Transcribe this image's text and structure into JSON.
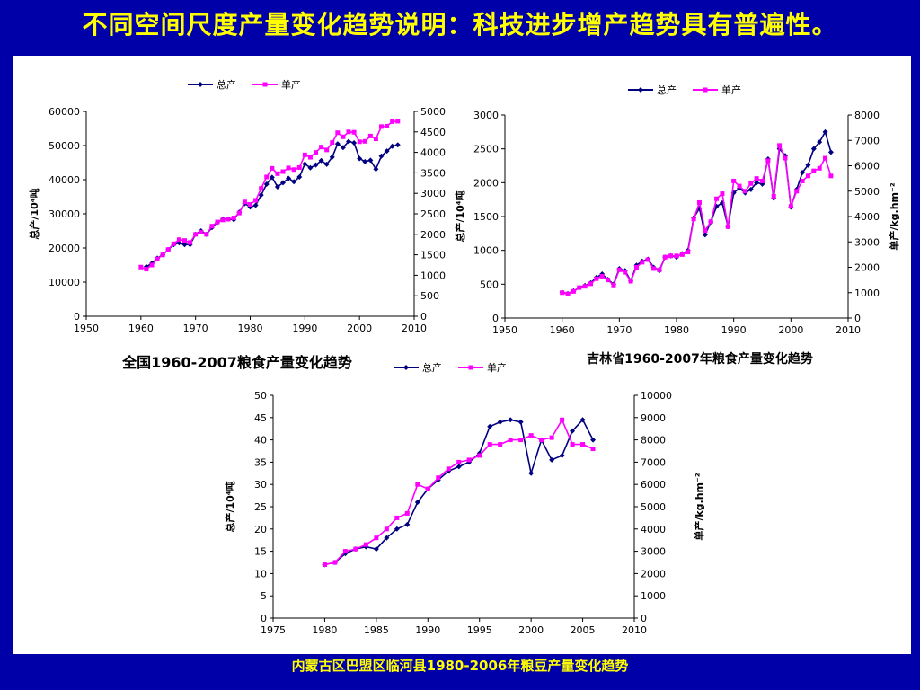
{
  "slide": {
    "title": "不同空间尺度产量变化趋势说明：科技进步增产趋势具有普遍性。",
    "footer": "内蒙古区巴盟区临河县1980-2006年粮豆产量变化趋势"
  },
  "colors": {
    "total": "#000080",
    "unit": "#ff00ff",
    "background": "#0000a8",
    "title": "#ffff00"
  },
  "chart_data": [
    {
      "type": "line",
      "caption": "全国1960-2007粮食产量变化趋势",
      "legend": [
        "总产",
        "单产"
      ],
      "legend_position": "top-center",
      "ylabel": "总产/10⁴吨",
      "y2label": "",
      "xlim": [
        1950,
        2010
      ],
      "xticks": [
        1950,
        1960,
        1970,
        1980,
        1990,
        2000,
        2010
      ],
      "ylim": [
        0,
        60000
      ],
      "yticks": [
        0,
        10000,
        20000,
        30000,
        40000,
        50000,
        60000
      ],
      "y2lim": [
        0,
        5000
      ],
      "y2ticks": [
        0,
        500,
        1000,
        1500,
        2000,
        2500,
        3000,
        3500,
        4000,
        4500,
        5000
      ],
      "series": [
        {
          "name": "总产",
          "axis": "left",
          "x": [
            1961,
            1962,
            1963,
            1964,
            1965,
            1966,
            1967,
            1968,
            1969,
            1970,
            1971,
            1972,
            1973,
            1974,
            1975,
            1976,
            1977,
            1978,
            1979,
            1980,
            1981,
            1982,
            1983,
            1984,
            1985,
            1986,
            1987,
            1988,
            1989,
            1990,
            1991,
            1992,
            1993,
            1994,
            1995,
            1996,
            1997,
            1998,
            1999,
            2000,
            2001,
            2002,
            2003,
            2004,
            2005,
            2006,
            2007
          ],
          "y": [
            14500,
            15500,
            17000,
            18000,
            19500,
            21000,
            21500,
            21000,
            21000,
            24000,
            25000,
            24000,
            26000,
            27500,
            28500,
            28500,
            28300,
            30500,
            33000,
            32000,
            32500,
            35500,
            38700,
            40700,
            37900,
            39100,
            40400,
            39400,
            40800,
            44600,
            43500,
            44300,
            45600,
            44500,
            46600,
            50500,
            49400,
            51200,
            50800,
            46200,
            45300,
            45700,
            43100,
            46900,
            48400,
            49800,
            50200
          ]
        },
        {
          "name": "单产",
          "axis": "right",
          "x": [
            1960,
            1961,
            1962,
            1963,
            1964,
            1965,
            1966,
            1967,
            1968,
            1969,
            1970,
            1971,
            1972,
            1973,
            1974,
            1975,
            1976,
            1977,
            1978,
            1979,
            1980,
            1981,
            1982,
            1983,
            1984,
            1985,
            1986,
            1987,
            1988,
            1989,
            1990,
            1991,
            1992,
            1993,
            1994,
            1995,
            1996,
            1997,
            1998,
            1999,
            2000,
            2001,
            2002,
            2003,
            2004,
            2005,
            2006,
            2007
          ],
          "y": [
            1200,
            1150,
            1250,
            1400,
            1500,
            1630,
            1770,
            1870,
            1850,
            1800,
            2000,
            2050,
            2000,
            2200,
            2300,
            2350,
            2370,
            2400,
            2520,
            2790,
            2730,
            2830,
            3120,
            3400,
            3610,
            3480,
            3530,
            3620,
            3580,
            3630,
            3940,
            3880,
            4000,
            4130,
            4060,
            4240,
            4480,
            4380,
            4500,
            4490,
            4260,
            4270,
            4400,
            4330,
            4630,
            4640,
            4750,
            4760
          ]
        }
      ]
    },
    {
      "type": "line",
      "caption": "吉林省1960-2007年粮食产量变化趋势",
      "legend": [
        "总产",
        "单产"
      ],
      "legend_position": "top-center",
      "ylabel": "总产/10⁴吨",
      "y2label": "单产/kg.hm⁻²",
      "xlim": [
        1950,
        2010
      ],
      "xticks": [
        1950,
        1960,
        1970,
        1980,
        1990,
        2000,
        2010
      ],
      "ylim": [
        0,
        3000
      ],
      "yticks": [
        0,
        500,
        1000,
        1500,
        2000,
        2500,
        3000
      ],
      "y2lim": [
        0,
        8000
      ],
      "y2ticks": [
        0,
        1000,
        2000,
        3000,
        4000,
        5000,
        6000,
        7000,
        8000
      ],
      "series": [
        {
          "name": "总产",
          "axis": "left",
          "x": [
            1960,
            1961,
            1962,
            1963,
            1964,
            1965,
            1966,
            1967,
            1968,
            1969,
            1970,
            1971,
            1972,
            1973,
            1974,
            1975,
            1976,
            1977,
            1978,
            1979,
            1980,
            1981,
            1982,
            1983,
            1984,
            1985,
            1986,
            1987,
            1988,
            1989,
            1990,
            1991,
            1992,
            1993,
            1994,
            1995,
            1996,
            1997,
            1998,
            1999,
            2000,
            2001,
            2002,
            2003,
            2004,
            2005,
            2006,
            2007
          ],
          "y": [
            380,
            360,
            400,
            450,
            480,
            520,
            600,
            650,
            570,
            500,
            730,
            700,
            550,
            780,
            840,
            870,
            750,
            700,
            900,
            920,
            900,
            950,
            1000,
            1480,
            1620,
            1230,
            1420,
            1650,
            1700,
            1350,
            1850,
            1920,
            1850,
            1900,
            2000,
            1980,
            2350,
            1770,
            2500,
            2400,
            1640,
            1900,
            2150,
            2260,
            2500,
            2600,
            2750,
            2450
          ]
        },
        {
          "name": "单产",
          "axis": "right",
          "x": [
            1960,
            1961,
            1962,
            1963,
            1964,
            1965,
            1966,
            1967,
            1968,
            1969,
            1970,
            1971,
            1972,
            1973,
            1974,
            1975,
            1976,
            1977,
            1978,
            1979,
            1980,
            1981,
            1982,
            1983,
            1984,
            1985,
            1986,
            1987,
            1988,
            1989,
            1990,
            1991,
            1992,
            1993,
            1994,
            1995,
            1996,
            1997,
            1998,
            1999,
            2000,
            2001,
            2002,
            2003,
            2004,
            2005,
            2006,
            2007
          ],
          "y": [
            1000,
            950,
            1050,
            1200,
            1250,
            1350,
            1550,
            1650,
            1500,
            1300,
            1900,
            1800,
            1450,
            2000,
            2200,
            2300,
            1950,
            1900,
            2400,
            2450,
            2450,
            2500,
            2600,
            3900,
            4550,
            3450,
            3800,
            4700,
            4900,
            3600,
            5400,
            5200,
            5000,
            5300,
            5500,
            5400,
            6200,
            4800,
            6800,
            6300,
            4400,
            5000,
            5400,
            5600,
            5800,
            5900,
            6300,
            5600
          ]
        }
      ]
    },
    {
      "type": "line",
      "caption": "",
      "legend": [
        "总产",
        "单产"
      ],
      "legend_position": "top-right",
      "ylabel": "总产/10⁴吨",
      "y2label": "单产/kg.hm⁻²",
      "xlim": [
        1975,
        2010
      ],
      "xticks": [
        1975,
        1980,
        1985,
        1990,
        1995,
        2000,
        2005,
        2010
      ],
      "ylim": [
        0,
        50
      ],
      "yticks": [
        0,
        5,
        10,
        15,
        20,
        25,
        30,
        35,
        40,
        45,
        50
      ],
      "y2lim": [
        0,
        10000
      ],
      "y2ticks": [
        0,
        1000,
        2000,
        3000,
        4000,
        5000,
        6000,
        7000,
        8000,
        9000,
        10000
      ],
      "series": [
        {
          "name": "总产",
          "axis": "left",
          "x": [
            1980,
            1981,
            1982,
            1983,
            1984,
            1985,
            1986,
            1987,
            1988,
            1989,
            1990,
            1991,
            1992,
            1993,
            1994,
            1995,
            1996,
            1997,
            1998,
            1999,
            2000,
            2001,
            2002,
            2003,
            2004,
            2005,
            2006
          ],
          "y": [
            12,
            12.5,
            14.5,
            15.5,
            16,
            15.5,
            18,
            20,
            21,
            26,
            29,
            31,
            33,
            34,
            35,
            37,
            43,
            44,
            44.5,
            44,
            32.5,
            40,
            35.5,
            36.5,
            42,
            44.5,
            40
          ]
        },
        {
          "name": "单产",
          "axis": "right",
          "x": [
            1980,
            1981,
            1982,
            1983,
            1984,
            1985,
            1986,
            1987,
            1988,
            1989,
            1990,
            1991,
            1992,
            1993,
            1994,
            1995,
            1996,
            1997,
            1998,
            1999,
            2000,
            2001,
            2002,
            2003,
            2004,
            2005,
            2006
          ],
          "y": [
            2400,
            2500,
            3000,
            3100,
            3300,
            3600,
            4000,
            4500,
            4700,
            6000,
            5800,
            6300,
            6700,
            7000,
            7100,
            7300,
            7800,
            7800,
            8000,
            8000,
            8200,
            8000,
            8100,
            8900,
            7800,
            7800,
            7600
          ]
        }
      ]
    }
  ]
}
